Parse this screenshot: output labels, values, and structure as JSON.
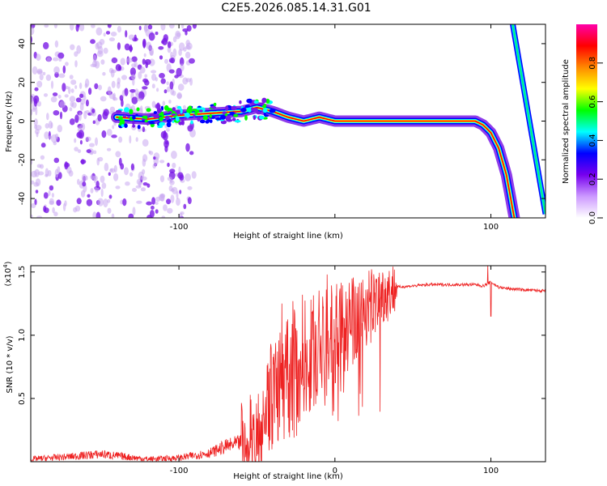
{
  "title": "C2E5.2026.085.14.31.G01",
  "chart_data": [
    {
      "type": "heatmap",
      "name": "spectrogram",
      "xlabel": "Height of straight line (km)",
      "ylabel": "Frequency (Hz)",
      "xlim": [
        -195,
        135
      ],
      "ylim": [
        -50,
        50
      ],
      "xticks": [
        -100,
        0,
        100
      ],
      "xtick_labels": [
        "-100",
        "",
        "100"
      ],
      "yticks": [
        -40,
        -20,
        0,
        20,
        40
      ],
      "ytick_labels": [
        "-40",
        "-20",
        "0",
        "20",
        "40"
      ],
      "ridge": {
        "x": [
          -140,
          -120,
          -100,
          -80,
          -60,
          -50,
          -40,
          -30,
          -20,
          -10,
          0,
          20,
          40,
          60,
          80,
          90,
          95,
          100,
          105,
          110,
          115
        ],
        "y": [
          2,
          1,
          3,
          4,
          5,
          7,
          5,
          2,
          0,
          2,
          0,
          0,
          0,
          0,
          0,
          0,
          -2,
          -6,
          -14,
          -28,
          -50
        ]
      },
      "secondary_line": {
        "x": [
          114,
          135
        ],
        "y": [
          50,
          -48
        ]
      },
      "noise_region_x": [
        -195,
        -100
      ],
      "colorbar": {
        "label": "Normalized spectral amplitude",
        "range": [
          0,
          1
        ],
        "ticks": [
          0.0,
          0.2,
          0.4,
          0.6,
          0.8
        ],
        "tick_labels": [
          "0.0",
          "0.2",
          "0.4",
          "0.6",
          "0.8"
        ],
        "colors": [
          "#ffffff",
          "#cc99ff",
          "#7700ee",
          "#0000ff",
          "#00ffff",
          "#00ff00",
          "#ffff00",
          "#ff8800",
          "#ff0000",
          "#ff00aa"
        ]
      }
    },
    {
      "type": "line",
      "name": "snr",
      "xlabel": "Height of straight line (km)",
      "ylabel": "SNR (10 * v/v)",
      "scale_label": "(x10",
      "scale_exp": "4",
      "scale_close": ")",
      "xlim": [
        -195,
        135
      ],
      "ylim": [
        0,
        1.55
      ],
      "xticks": [
        -100,
        0,
        100
      ],
      "xtick_labels": [
        "-100",
        "0",
        "100"
      ],
      "yticks": [
        0.5,
        1.0,
        1.5
      ],
      "ytick_labels": [
        "0.5",
        "1.0",
        "1.5"
      ],
      "color": "#ee2222",
      "envelope": {
        "x": [
          -195,
          -170,
          -150,
          -120,
          -100,
          -80,
          -70,
          -60,
          -50,
          -45,
          -40,
          -35,
          -30,
          -25,
          -20,
          -15,
          -10,
          -5,
          0,
          10,
          20,
          30,
          40,
          60,
          80,
          90,
          95,
          100,
          105,
          110,
          120,
          135
        ],
        "y": [
          0.02,
          0.04,
          0.06,
          0.02,
          0.03,
          0.07,
          0.12,
          0.15,
          0.25,
          0.4,
          0.55,
          0.6,
          0.65,
          0.7,
          0.85,
          0.85,
          0.9,
          0.95,
          1.0,
          1.1,
          1.22,
          1.32,
          1.38,
          1.4,
          1.4,
          1.4,
          1.39,
          1.42,
          1.38,
          1.37,
          1.36,
          1.35
        ]
      },
      "spikes": [
        {
          "x": -34,
          "y": 1.25
        },
        {
          "x": -27,
          "y": 1.27
        },
        {
          "x": -5,
          "y": 1.48
        },
        {
          "x": 98,
          "y": 1.55
        },
        {
          "x": 100,
          "y": 1.15
        }
      ]
    }
  ]
}
